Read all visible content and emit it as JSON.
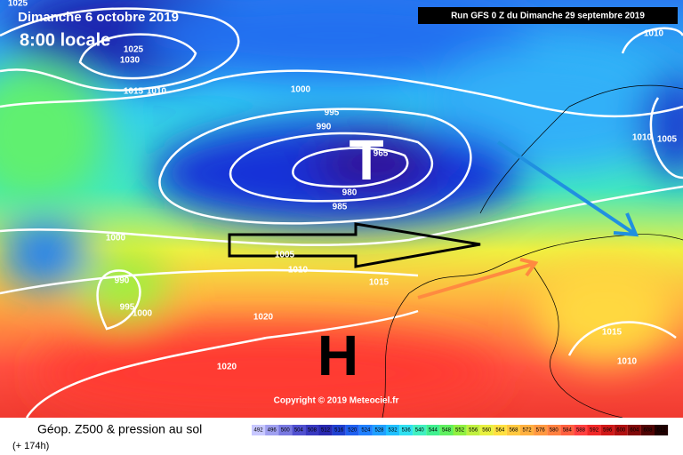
{
  "header": {
    "date": "Dimanche 6 octobre 2019",
    "time": "8:00 locale",
    "run": "Run GFS 0 Z du Dimanche 29 septembre 2019"
  },
  "map": {
    "low_symbol": "T",
    "high_symbol": "H",
    "copyright": "Copyright © 2019 Meteociel.fr",
    "isobar_labels": [
      "1025",
      "1025",
      "1030",
      "1015",
      "1010",
      "1000",
      "995",
      "990",
      "965",
      "980",
      "985",
      "1000",
      "1005",
      "1010",
      "1015",
      "990",
      "995",
      "1000",
      "1020",
      "1020",
      "1015",
      "1010",
      "1010",
      "1005",
      "1010"
    ]
  },
  "footer": {
    "title": "Géop. Z500 & pression au sol",
    "lead": "(+ 174h)",
    "scale": {
      "labels": [
        "492",
        "496",
        "500",
        "504",
        "508",
        "512",
        "516",
        "520",
        "524",
        "528",
        "532",
        "536",
        "540",
        "544",
        "548",
        "552",
        "556",
        "560",
        "564",
        "568",
        "572",
        "576",
        "580",
        "584",
        "588",
        "592",
        "596",
        "600",
        "604",
        "608",
        "612"
      ],
      "colors": [
        "#c8c8ff",
        "#a0a0f0",
        "#7878e0",
        "#5050d0",
        "#3838c0",
        "#2828b0",
        "#2040d0",
        "#2060f0",
        "#2080ff",
        "#20a0ff",
        "#20c0ff",
        "#30e0f0",
        "#40f0c0",
        "#40f090",
        "#60f060",
        "#90f040",
        "#c0f040",
        "#e8f040",
        "#ffe040",
        "#ffc840",
        "#ffb040",
        "#ff9840",
        "#ff8040",
        "#ff6040",
        "#ff4040",
        "#f02828",
        "#d01818",
        "#b01010",
        "#800808",
        "#500404",
        "#200000"
      ]
    }
  }
}
